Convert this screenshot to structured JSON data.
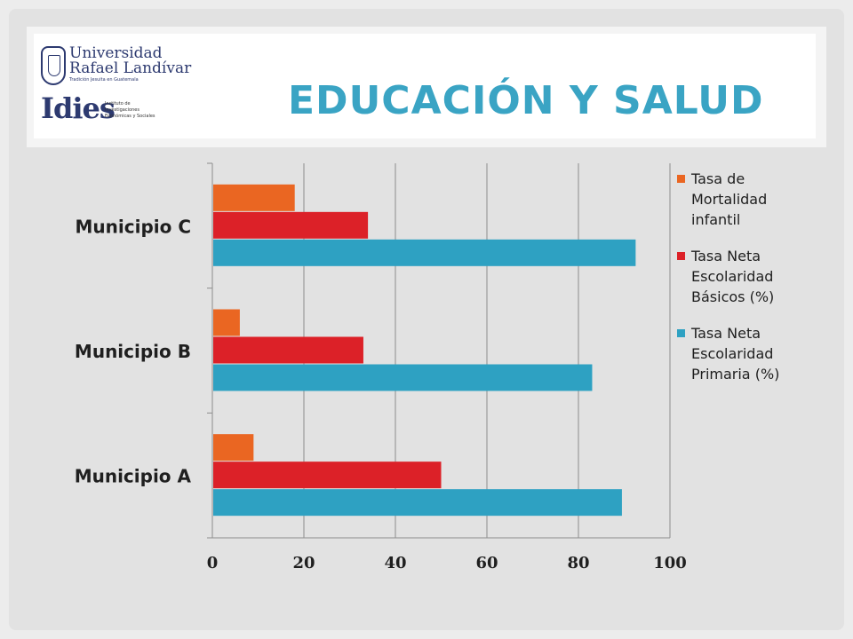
{
  "slide": {
    "title": "EDUCACIÓN Y SALUD",
    "logo": {
      "university_line1": "Universidad",
      "university_line2": "Rafael Landívar",
      "university_tagline": "Tradición Jesuita en Guatemala",
      "institute_name": "Idies",
      "institute_sub": "Instituto de Investigaciones Económicas y Sociales"
    }
  },
  "chart_data": {
    "type": "bar",
    "orientation": "horizontal",
    "categories": [
      "Municipio A",
      "Municipio B",
      "Municipio C"
    ],
    "series": [
      {
        "name": "Tasa Neta Escolaridad Primaria (%)",
        "color": "#2ea1c2",
        "values": [
          89.5,
          83,
          92.5
        ]
      },
      {
        "name": "Tasa Neta Escolaridad Básicos (%)",
        "color": "#dc2128",
        "values": [
          50,
          33,
          34
        ]
      },
      {
        "name": "Tasa de Mortalidad infantil",
        "color": "#ea6622",
        "values": [
          9,
          6,
          18
        ]
      }
    ],
    "xlim": [
      0,
      100
    ],
    "x_ticks": [
      "0",
      "20",
      "40",
      "60",
      "80",
      "100"
    ],
    "grid": "vertical",
    "legend_position": "right",
    "title": "",
    "xlabel": "",
    "ylabel": ""
  }
}
